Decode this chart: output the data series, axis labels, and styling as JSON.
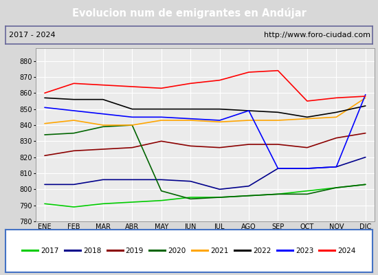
{
  "title": "Evolucion num de emigrantes en Andújar",
  "subtitle_left": "2017 - 2024",
  "subtitle_right": "http://www.foro-ciudad.com",
  "months": [
    "ENE",
    "FEB",
    "MAR",
    "ABR",
    "MAY",
    "JUN",
    "JUL",
    "AGO",
    "SEP",
    "OCT",
    "NOV",
    "DIC"
  ],
  "series": {
    "2017": [
      791,
      789,
      791,
      792,
      793,
      795,
      795,
      796,
      797,
      799,
      801,
      803
    ],
    "2018": [
      803,
      803,
      806,
      806,
      806,
      805,
      800,
      802,
      813,
      813,
      814,
      820
    ],
    "2019": [
      821,
      824,
      825,
      826,
      830,
      827,
      826,
      828,
      828,
      826,
      832,
      835
    ],
    "2020": [
      834,
      835,
      839,
      840,
      799,
      794,
      795,
      796,
      797,
      797,
      801,
      803
    ],
    "2021": [
      841,
      843,
      840,
      840,
      843,
      843,
      842,
      843,
      843,
      844,
      845,
      857
    ],
    "2022": [
      857,
      856,
      856,
      850,
      850,
      850,
      850,
      849,
      848,
      845,
      848,
      852
    ],
    "2023": [
      851,
      849,
      847,
      845,
      845,
      844,
      843,
      849,
      813,
      813,
      814,
      859
    ],
    "2024": [
      860,
      866,
      865,
      864,
      863,
      866,
      868,
      873,
      874,
      855,
      857,
      858
    ]
  },
  "colors": {
    "2017": "#00cc00",
    "2018": "#00008b",
    "2019": "#8b0000",
    "2020": "#006400",
    "2021": "#ffa500",
    "2022": "#000000",
    "2023": "#0000ff",
    "2024": "#ff0000"
  },
  "ylim": [
    780,
    888
  ],
  "yticks": [
    780,
    790,
    800,
    810,
    820,
    830,
    840,
    850,
    860,
    870,
    880
  ],
  "title_bg": "#4d8fcc",
  "title_color": "#ffffff",
  "plot_bg": "#d8d8d8",
  "inner_bg": "#ebebeb",
  "grid_color": "#ffffff",
  "subtitle_bg": "#d8d8d8",
  "legend_border": "#4472c4",
  "legend_bg": "#ffffff"
}
